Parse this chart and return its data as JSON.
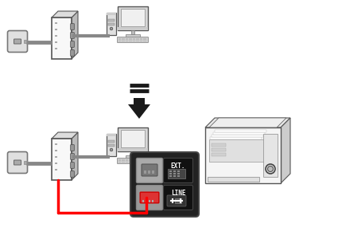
{
  "bg_color": "#ffffff",
  "gray": "#888888",
  "dark_gray": "#555555",
  "light_gray": "#cccccc",
  "very_light_gray": "#eeeeee",
  "black": "#111111",
  "red": "#ff0000",
  "arrow_color": "#1a1a1a",
  "wall_fill": "#e0e0e0",
  "wall_stroke": "#777777",
  "modem_fill": "#f8f8f8",
  "modem_stroke": "#555555",
  "modem_side_fill": "#bbbbbb",
  "computer_fill": "#e8e8e8",
  "printer_fill": "#f5f5f5"
}
